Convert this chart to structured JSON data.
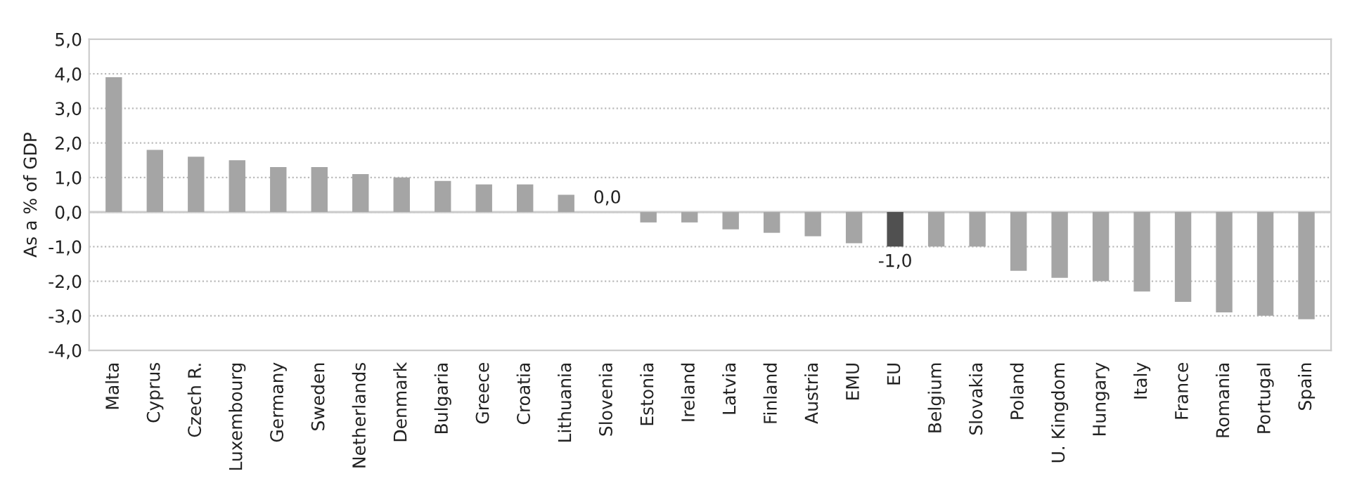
{
  "chart_data": {
    "type": "bar",
    "ylabel": "As a % of GDP",
    "categories": [
      "Malta",
      "Cyprus",
      "Czech R.",
      "Luxembourg",
      "Germany",
      "Sweden",
      "Netherlands",
      "Denmark",
      "Bulgaria",
      "Greece",
      "Croatia",
      "Lithuania",
      "Slovenia",
      "Estonia",
      "Ireland",
      "Latvia",
      "Finland",
      "Austria",
      "EMU",
      "EU",
      "Belgium",
      "Slovakia",
      "Poland",
      "U. Kingdom",
      "Hungary",
      "Italy",
      "France",
      "Romania",
      "Portugal",
      "Spain"
    ],
    "values": [
      3.9,
      1.8,
      1.6,
      1.5,
      1.3,
      1.3,
      1.1,
      1.0,
      0.9,
      0.8,
      0.8,
      0.5,
      0.0,
      -0.3,
      -0.3,
      -0.5,
      -0.6,
      -0.7,
      -0.9,
      -1.0,
      -1.0,
      -1.0,
      -1.7,
      -1.9,
      -2.0,
      -2.3,
      -2.6,
      -2.9,
      -3.0,
      -3.1
    ],
    "colors": [
      "#a5a5a5",
      "#a5a5a5",
      "#a5a5a5",
      "#a5a5a5",
      "#a5a5a5",
      "#a5a5a5",
      "#a5a5a5",
      "#a5a5a5",
      "#a5a5a5",
      "#a5a5a5",
      "#a5a5a5",
      "#a5a5a5",
      "#a5a5a5",
      "#a5a5a5",
      "#a5a5a5",
      "#a5a5a5",
      "#a5a5a5",
      "#a5a5a5",
      "#a5a5a5",
      "#505050",
      "#a5a5a5",
      "#a5a5a5",
      "#a5a5a5",
      "#a5a5a5",
      "#a5a5a5",
      "#a5a5a5",
      "#a5a5a5",
      "#a5a5a5",
      "#a5a5a5",
      "#a5a5a5"
    ],
    "value_labels": [
      null,
      null,
      null,
      null,
      null,
      null,
      null,
      null,
      null,
      null,
      null,
      null,
      "0,0",
      null,
      null,
      null,
      null,
      null,
      null,
      "-1,0",
      null,
      null,
      null,
      null,
      null,
      null,
      null,
      null,
      null,
      null
    ],
    "ylim": [
      -4.0,
      5.0
    ],
    "yticks": [
      {
        "value": -4.0,
        "label": "-4,0"
      },
      {
        "value": -3.0,
        "label": "-3,0"
      },
      {
        "value": -2.0,
        "label": "-2,0"
      },
      {
        "value": -1.0,
        "label": "-1,0"
      },
      {
        "value": 0.0,
        "label": "0,0"
      },
      {
        "value": 1.0,
        "label": "1,0"
      },
      {
        "value": 2.0,
        "label": "2,0"
      },
      {
        "value": 3.0,
        "label": "3,0"
      },
      {
        "value": 4.0,
        "label": "4,0"
      },
      {
        "value": 5.0,
        "label": "5,0"
      }
    ],
    "grid": "y",
    "legend": false
  }
}
